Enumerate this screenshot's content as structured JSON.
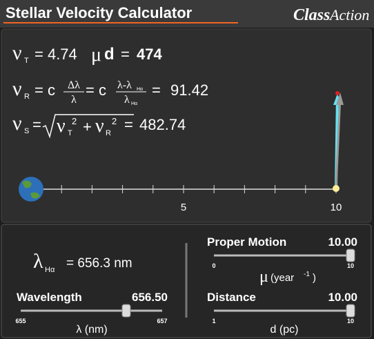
{
  "header": {
    "title": "Stellar Velocity Calculator",
    "logo_a": "Class",
    "logo_b": "Action"
  },
  "formulas": {
    "transverse": {
      "symbol": "ν",
      "sub": "T",
      "expr": "= 4.74",
      "mu": "μ",
      "d": "d",
      "eq": "=",
      "result": 474
    },
    "radial": {
      "symbol": "ν",
      "sub": "R",
      "expr": "= c",
      "num1": "Δλ",
      "den1": "λ",
      "c2": "= c",
      "num2": "λ-λ",
      "num2_sub": "Hα",
      "den2": "λ",
      "den2_sub": "Hα",
      "eq": "=",
      "result": 91.42
    },
    "space": {
      "symbol": "ν",
      "sub": "S",
      "eq": "=",
      "t_symbol": "ν",
      "t_sub": "T",
      "t_exp": "2",
      "plus": "+",
      "r_symbol": "ν",
      "r_sub": "R",
      "r_exp": "2",
      "eq2": "=",
      "result": 482.74
    }
  },
  "scale": {
    "ticks": [
      5,
      10
    ]
  },
  "controls": {
    "rest_wavelength": {
      "symbol": "λ",
      "sub": "Hα",
      "text": "= 656.3 nm"
    },
    "proper_motion": {
      "label": "Proper Motion",
      "value": "10.00",
      "min": 0,
      "max": 10,
      "unit_symbol": "μ",
      "unit": "(year",
      "unit_exp": "-1",
      "unit_close": ")"
    },
    "wavelength": {
      "label": "Wavelength",
      "value": "656.50",
      "min": 655,
      "max": 657,
      "unit": "λ (nm)"
    },
    "distance": {
      "label": "Distance",
      "value": "10.00",
      "min": 1,
      "max": 10,
      "unit": "d (pc)"
    }
  }
}
